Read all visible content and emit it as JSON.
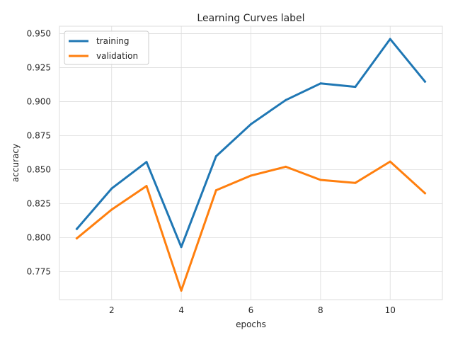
{
  "chart_data": {
    "type": "line",
    "title": "Learning Curves label",
    "xlabel": "epochs",
    "ylabel": "accuracy",
    "x": [
      1,
      2,
      3,
      4,
      5,
      6,
      7,
      8,
      9,
      10,
      11
    ],
    "xlim": [
      0.5,
      11.5
    ],
    "ylim": [
      0.7545,
      0.9555
    ],
    "xticks": [
      2,
      4,
      6,
      8,
      10
    ],
    "yticks": [
      0.775,
      0.8,
      0.825,
      0.85,
      0.875,
      0.9,
      0.925,
      0.95
    ],
    "xtick_labels": [
      "2",
      "4",
      "6",
      "8",
      "10"
    ],
    "ytick_labels": [
      "0.775",
      "0.800",
      "0.825",
      "0.850",
      "0.875",
      "0.900",
      "0.925",
      "0.950"
    ],
    "grid": true,
    "legend_position": "top-left",
    "series": [
      {
        "name": "training",
        "color": "#1f77b4",
        "values": [
          0.8065,
          0.8362,
          0.8557,
          0.7932,
          0.8599,
          0.8835,
          0.9012,
          0.9134,
          0.9109,
          0.9461,
          0.9148
        ]
      },
      {
        "name": "validation",
        "color": "#ff7f0e",
        "values": [
          0.7996,
          0.8207,
          0.838,
          0.7611,
          0.8349,
          0.8457,
          0.8522,
          0.8425,
          0.8403,
          0.856,
          0.8327
        ]
      }
    ]
  }
}
